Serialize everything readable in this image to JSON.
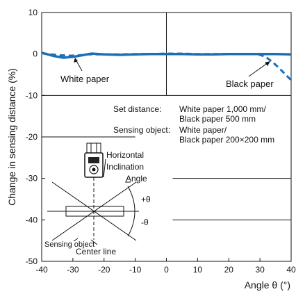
{
  "chart_data": {
    "type": "line",
    "title": "",
    "xlabel": "Angle θ (°)",
    "ylabel": "Change in sensing distance (%)",
    "xlim": [
      -40,
      40
    ],
    "ylim": [
      -50,
      10
    ],
    "xticks": [
      -40,
      -30,
      -20,
      -10,
      0,
      10,
      20,
      30,
      40
    ],
    "yticks": [
      10,
      0,
      -10,
      -20,
      -30,
      -40,
      -50
    ],
    "grid": false,
    "series": [
      {
        "name": "White paper",
        "color": "#1a6fb5",
        "style": "solid",
        "x": [
          -40,
          -36,
          -33,
          -30,
          -27,
          -24,
          -20,
          -15,
          -10,
          -5,
          0,
          5,
          10,
          15,
          20,
          25,
          30,
          35,
          40
        ],
        "y": [
          0.3,
          -0.5,
          -0.9,
          -0.7,
          -0.3,
          0.1,
          -0.1,
          -0.2,
          -0.1,
          0.0,
          0.0,
          0.0,
          -0.1,
          -0.1,
          0.0,
          0.0,
          0.0,
          0.0,
          -0.1
        ]
      },
      {
        "name": "Black paper",
        "color": "#1a6fb5",
        "style": "dashed",
        "x": [
          -40,
          -37,
          -34,
          -31,
          -28,
          -25,
          -20,
          -15,
          -10,
          -5,
          0,
          5,
          10,
          15,
          20,
          25,
          28,
          30,
          32,
          34,
          36,
          38,
          40
        ],
        "y": [
          0.2,
          -0.1,
          -0.3,
          -0.4,
          -0.3,
          -0.1,
          -0.1,
          -0.1,
          0.0,
          0.0,
          0.1,
          0.1,
          0.0,
          0.0,
          0.0,
          0.0,
          0.0,
          -0.2,
          -0.8,
          -1.9,
          -3.3,
          -4.8,
          -6.3
        ]
      }
    ],
    "annotations": {
      "white_paper_label": "White paper",
      "black_paper_label": "Black paper",
      "set_distance_label": "Set distance:",
      "set_distance_line1": "White paper 1,000 mm/",
      "set_distance_line2": "Black paper  500 mm",
      "sensing_object_label": "Sensing object:",
      "sensing_object_line1": "White paper/",
      "sensing_object_line2": "Black paper 200×200 mm",
      "horizontal": "Horizontal",
      "inclination": "Inclination",
      "angle": "Angle",
      "plus_theta": "+θ",
      "minus_theta": "-θ",
      "sensing_object_small": "Sensing object",
      "center_line": "Center line"
    }
  }
}
